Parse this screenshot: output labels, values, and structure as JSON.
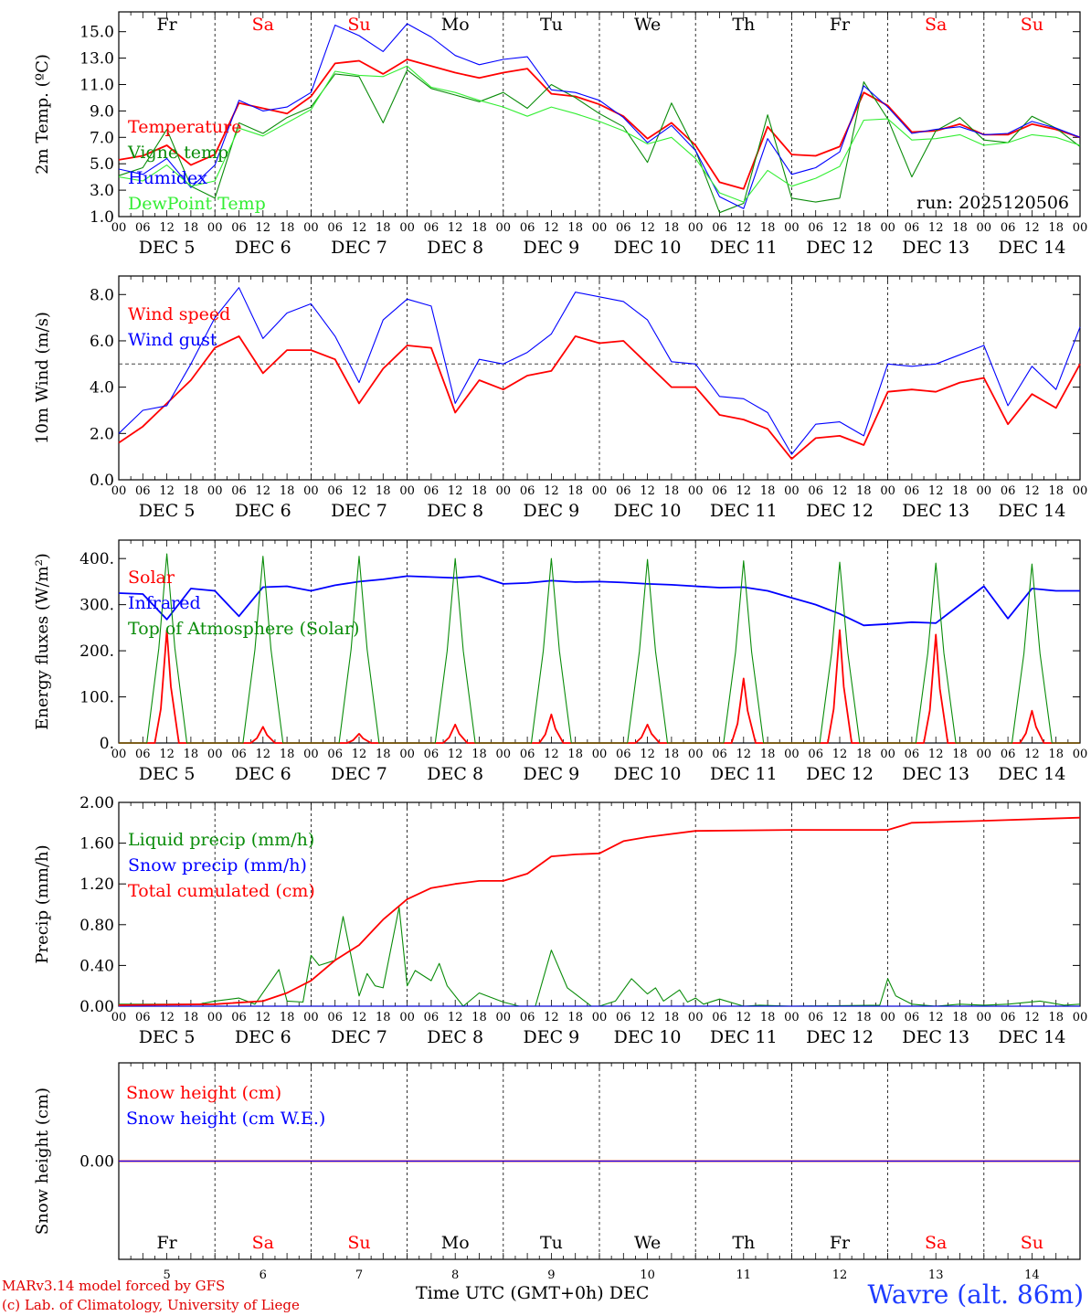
{
  "run_label": "run: 2025120506",
  "x_axis_title": "Time UTC (GMT+0h) DEC",
  "station": "Wavre (alt. 86m)",
  "credits": [
    "MARv3.14 model forced by GFS",
    "(c) Lab. of Climatology, University of Liege"
  ],
  "colors": {
    "red": "#ff0000",
    "green": "#0a8c0a",
    "blue": "#0000ff",
    "lightgreen": "#33ee33",
    "weekend": "#ff0000",
    "weekday": "#000000",
    "station": "#1e3cff"
  },
  "days": [
    {
      "date": "DEC  5",
      "num": "5",
      "wd": "Fr",
      "weekend": false
    },
    {
      "date": "DEC  6",
      "num": "6",
      "wd": "Sa",
      "weekend": true
    },
    {
      "date": "DEC  7",
      "num": "7",
      "wd": "Su",
      "weekend": true
    },
    {
      "date": "DEC  8",
      "num": "8",
      "wd": "Mo",
      "weekend": false
    },
    {
      "date": "DEC  9",
      "num": "9",
      "wd": "Tu",
      "weekend": false
    },
    {
      "date": "DEC 10",
      "num": "10",
      "wd": "We",
      "weekend": false
    },
    {
      "date": "DEC 11",
      "num": "11",
      "wd": "Th",
      "weekend": false
    },
    {
      "date": "DEC 12",
      "num": "12",
      "wd": "Fr",
      "weekend": false
    },
    {
      "date": "DEC 13",
      "num": "13",
      "wd": "Sa",
      "weekend": true
    },
    {
      "date": "DEC 14",
      "num": "14",
      "wd": "Su",
      "weekend": true
    }
  ],
  "hour_ticks": [
    "00",
    "06",
    "12",
    "18"
  ],
  "chart_data": [
    {
      "type": "line",
      "id": "temp",
      "ylabel": "2m Temp. (ºC)",
      "ylim": [
        1,
        16.5
      ],
      "yticks": [
        1.0,
        3.0,
        5.0,
        7.0,
        9.0,
        11.0,
        13.0,
        15.0
      ],
      "ytick_labels": [
        "1.0",
        "3.0",
        "5.0",
        "7.0",
        "9.0",
        "11.0",
        "13.0",
        "15.0"
      ],
      "x_unit": "hours since DEC 5 00 UTC",
      "series": [
        {
          "name": "Temperature",
          "color": "red",
          "x": [
            0,
            6,
            12,
            18,
            24,
            30,
            36,
            42,
            48,
            54,
            60,
            66,
            72,
            78,
            84,
            90,
            96,
            102,
            108,
            114,
            120,
            126,
            132,
            138,
            144,
            150,
            156,
            162,
            168,
            174,
            180,
            186,
            192,
            198,
            204,
            210,
            216,
            222,
            228,
            234,
            240
          ],
          "y": [
            5.3,
            5.6,
            6.4,
            4.9,
            5.7,
            9.6,
            9.2,
            8.8,
            10.1,
            12.6,
            12.8,
            11.8,
            12.9,
            12.4,
            11.9,
            11.5,
            11.9,
            12.2,
            10.3,
            10.1,
            9.5,
            8.6,
            6.9,
            8.1,
            6.4,
            3.6,
            3.1,
            7.8,
            5.7,
            5.6,
            6.3,
            10.4,
            9.4,
            7.4,
            7.5,
            8.0,
            7.2,
            7.2,
            8.0,
            7.6,
            7.0
          ]
        },
        {
          "name": "Vigne temp",
          "color": "green",
          "x": [
            0,
            6,
            12,
            18,
            24,
            30,
            36,
            42,
            48,
            54,
            60,
            66,
            72,
            78,
            84,
            90,
            96,
            102,
            108,
            114,
            120,
            126,
            132,
            138,
            144,
            150,
            156,
            162,
            168,
            174,
            180,
            186,
            192,
            198,
            204,
            210,
            216,
            222,
            228,
            234,
            240
          ],
          "y": [
            4.1,
            4.7,
            7.6,
            3.3,
            2.4,
            8.1,
            7.3,
            8.5,
            9.3,
            11.8,
            11.6,
            8.1,
            12.1,
            10.7,
            10.2,
            9.7,
            10.4,
            9.2,
            11.0,
            10.0,
            8.8,
            7.8,
            5.1,
            9.6,
            6.0,
            1.3,
            2.0,
            8.7,
            2.4,
            2.1,
            2.4,
            11.2,
            8.4,
            4.0,
            7.5,
            8.5,
            6.8,
            6.6,
            8.6,
            7.7,
            6.3
          ]
        },
        {
          "name": "Humidex",
          "color": "blue",
          "x": [
            0,
            6,
            12,
            18,
            24,
            30,
            36,
            42,
            48,
            54,
            60,
            66,
            72,
            78,
            84,
            90,
            96,
            102,
            108,
            114,
            120,
            126,
            132,
            138,
            144,
            150,
            156,
            162,
            168,
            174,
            180,
            186,
            192,
            198,
            204,
            210,
            216,
            222,
            228,
            234,
            240
          ],
          "y": [
            4.6,
            4.2,
            5.4,
            3.2,
            4.9,
            9.8,
            9.0,
            9.3,
            10.4,
            15.5,
            14.7,
            13.5,
            15.6,
            14.6,
            13.2,
            12.5,
            12.9,
            13.1,
            10.6,
            10.4,
            9.8,
            8.5,
            6.6,
            7.9,
            6.0,
            2.5,
            1.6,
            6.9,
            4.2,
            4.7,
            5.9,
            10.9,
            9.3,
            7.3,
            7.6,
            7.8,
            7.2,
            7.3,
            8.2,
            7.7,
            7.0
          ]
        },
        {
          "name": "DewPoint Temp",
          "color": "lightgreen",
          "x": [
            0,
            6,
            12,
            18,
            24,
            30,
            36,
            42,
            48,
            54,
            60,
            66,
            72,
            78,
            84,
            90,
            96,
            102,
            108,
            114,
            120,
            126,
            132,
            138,
            144,
            150,
            156,
            162,
            168,
            174,
            180,
            186,
            192,
            198,
            204,
            210,
            216,
            222,
            228,
            234,
            240
          ],
          "y": [
            4.0,
            3.7,
            4.9,
            3.3,
            3.7,
            7.7,
            7.1,
            8.1,
            9.1,
            12.0,
            11.7,
            11.6,
            12.4,
            10.8,
            10.4,
            9.8,
            9.3,
            8.6,
            9.3,
            8.8,
            8.2,
            7.5,
            6.5,
            7.0,
            5.4,
            2.8,
            2.1,
            4.5,
            3.3,
            3.9,
            4.8,
            8.3,
            8.4,
            6.8,
            6.9,
            7.2,
            6.4,
            6.6,
            7.2,
            7.0,
            6.4
          ]
        }
      ],
      "legend": [
        "Temperature",
        "Vigne temp",
        "Humidex",
        "DewPoint Temp"
      ],
      "annotation": "run: 2025120506"
    },
    {
      "type": "line",
      "id": "wind",
      "ylabel": "10m Wind (m/s)",
      "ylim": [
        0,
        8.8
      ],
      "yticks": [
        0,
        2,
        4,
        6,
        8
      ],
      "ytick_labels": [
        "0.0",
        "2.0",
        "4.0",
        "6.0",
        "8.0"
      ],
      "reference_line": 5.0,
      "series": [
        {
          "name": "Wind speed",
          "color": "red",
          "x": [
            0,
            6,
            12,
            18,
            24,
            30,
            36,
            42,
            48,
            54,
            60,
            66,
            72,
            78,
            84,
            90,
            96,
            102,
            108,
            114,
            120,
            126,
            132,
            138,
            144,
            150,
            156,
            162,
            168,
            174,
            180,
            186,
            192,
            198,
            204,
            210,
            216,
            222,
            228,
            234,
            240
          ],
          "y": [
            1.6,
            2.3,
            3.3,
            4.3,
            5.7,
            6.2,
            4.6,
            5.6,
            5.6,
            5.2,
            3.3,
            4.8,
            5.8,
            5.7,
            2.9,
            4.3,
            3.9,
            4.5,
            4.7,
            6.2,
            5.9,
            6.0,
            5.0,
            4.0,
            4.0,
            2.8,
            2.6,
            2.2,
            0.9,
            1.8,
            1.9,
            1.5,
            3.8,
            3.9,
            3.8,
            4.2,
            4.4,
            2.4,
            3.7,
            3.1,
            5.0
          ]
        },
        {
          "name": "Wind gust",
          "color": "blue",
          "x": [
            0,
            6,
            12,
            18,
            24,
            30,
            36,
            42,
            48,
            54,
            60,
            66,
            72,
            78,
            84,
            90,
            96,
            102,
            108,
            114,
            120,
            126,
            132,
            138,
            144,
            150,
            156,
            162,
            168,
            174,
            180,
            186,
            192,
            198,
            204,
            210,
            216,
            222,
            228,
            234,
            240
          ],
          "y": [
            2.0,
            3.0,
            3.2,
            5.0,
            7.0,
            8.3,
            6.1,
            7.2,
            7.6,
            6.2,
            4.2,
            6.9,
            7.8,
            7.5,
            3.3,
            5.2,
            5.0,
            5.5,
            6.3,
            8.1,
            7.9,
            7.7,
            6.9,
            5.1,
            5.0,
            3.6,
            3.5,
            2.9,
            1.1,
            2.4,
            2.5,
            1.9,
            5.0,
            4.9,
            5.0,
            5.4,
            5.8,
            3.2,
            4.9,
            3.9,
            6.6
          ]
        }
      ],
      "legend": [
        "Wind speed",
        "Wind gust"
      ]
    },
    {
      "type": "line",
      "id": "energy",
      "ylabel": "Energy fluxes (W/m²)",
      "ylim": [
        0,
        440
      ],
      "yticks": [
        0,
        100,
        200,
        300,
        400
      ],
      "ytick_labels": [
        "0.",
        "100.",
        "200.",
        "300.",
        "400."
      ],
      "series": [
        {
          "name": "Solar",
          "color": "red",
          "peak_hour": 12,
          "peaks": [
            245,
            35,
            20,
            40,
            62,
            40,
            140,
            245,
            235,
            70
          ]
        },
        {
          "name": "Infrared",
          "color": "blue",
          "x": [
            0,
            6,
            12,
            18,
            24,
            30,
            36,
            42,
            48,
            54,
            60,
            66,
            72,
            78,
            84,
            90,
            96,
            102,
            108,
            114,
            120,
            126,
            132,
            138,
            144,
            150,
            156,
            162,
            168,
            174,
            180,
            186,
            192,
            198,
            204,
            210,
            216,
            222,
            228,
            234,
            240
          ],
          "y": [
            325,
            323,
            268,
            335,
            330,
            275,
            338,
            340,
            330,
            342,
            350,
            355,
            362,
            360,
            358,
            362,
            345,
            347,
            352,
            349,
            350,
            348,
            345,
            343,
            340,
            337,
            338,
            330,
            315,
            300,
            280,
            255,
            258,
            262,
            260,
            300,
            340,
            270,
            335,
            330,
            330
          ]
        },
        {
          "name": "Top of Atmosphere (Solar)",
          "color": "green",
          "peak_hour": 12,
          "peaks": [
            410,
            405,
            405,
            400,
            400,
            398,
            395,
            392,
            390,
            388
          ]
        }
      ],
      "legend": [
        "Solar",
        "Infrared",
        "Top of Atmosphere (Solar)"
      ]
    },
    {
      "type": "line",
      "id": "precip",
      "ylabel": "Precip (mm/h)",
      "ylim": [
        0,
        2
      ],
      "yticks": [
        0,
        0.4,
        0.8,
        1.2,
        1.6,
        2.0
      ],
      "ytick_labels": [
        "0.00",
        "0.40",
        "0.80",
        "1.20",
        "1.60",
        "2.00"
      ],
      "series": [
        {
          "name": "Liquid precip (mm/h)",
          "color": "green",
          "x": [
            0,
            20,
            24,
            30,
            34,
            40,
            42,
            46,
            48,
            50,
            54,
            56,
            60,
            62,
            64,
            66,
            70,
            72,
            74,
            78,
            80,
            82,
            86,
            90,
            96,
            100,
            104,
            108,
            112,
            118,
            120,
            124,
            128,
            132,
            134,
            136,
            140,
            142,
            144,
            146,
            150,
            156,
            160,
            168,
            190,
            192,
            194,
            198,
            204,
            210,
            216,
            222,
            230,
            236,
            240
          ],
          "y": [
            0.02,
            0.02,
            0.05,
            0.08,
            0.02,
            0.36,
            0.05,
            0.04,
            0.5,
            0.4,
            0.45,
            0.88,
            0.1,
            0.32,
            0.2,
            0.18,
            0.97,
            0.2,
            0.35,
            0.25,
            0.42,
            0.2,
            0.0,
            0.13,
            0.04,
            0.0,
            0.0,
            0.55,
            0.18,
            0.0,
            0.0,
            0.05,
            0.27,
            0.12,
            0.18,
            0.05,
            0.16,
            0.04,
            0.08,
            0.02,
            0.07,
            0.0,
            0.01,
            0.0,
            0.01,
            0.27,
            0.1,
            0.02,
            0.0,
            0.02,
            0.01,
            0.02,
            0.05,
            0.01,
            0.02
          ]
        },
        {
          "name": "Snow precip (mm/h)",
          "color": "blue",
          "x": [
            0,
            240
          ],
          "y": [
            0,
            0
          ]
        },
        {
          "name": "Total cumulated (cm)",
          "color": "red",
          "x": [
            0,
            24,
            36,
            42,
            48,
            54,
            60,
            66,
            72,
            78,
            84,
            90,
            96,
            102,
            108,
            114,
            120,
            126,
            132,
            144,
            168,
            192,
            198,
            216,
            240
          ],
          "y": [
            0.01,
            0.02,
            0.05,
            0.13,
            0.25,
            0.45,
            0.6,
            0.85,
            1.05,
            1.16,
            1.2,
            1.23,
            1.23,
            1.3,
            1.47,
            1.49,
            1.5,
            1.62,
            1.66,
            1.72,
            1.73,
            1.73,
            1.8,
            1.82,
            1.85
          ]
        }
      ],
      "legend": [
        "Liquid precip (mm/h)",
        "Snow precip (mm/h)",
        "Total cumulated (cm)"
      ]
    },
    {
      "type": "line",
      "id": "snow",
      "ylabel": "Snow height (cm)",
      "ylim": [
        -1,
        1
      ],
      "yticks": [
        0
      ],
      "ytick_labels": [
        "0.00"
      ],
      "series": [
        {
          "name": "Snow height (cm)",
          "color": "red",
          "x": [
            0,
            240
          ],
          "y": [
            0,
            0
          ]
        },
        {
          "name": "Snow height (cm W.E.)",
          "color": "blue",
          "x": [
            0,
            240
          ],
          "y": [
            0,
            0
          ]
        }
      ],
      "legend": [
        "Snow height (cm)",
        "Snow height (cm W.E.)"
      ]
    }
  ]
}
